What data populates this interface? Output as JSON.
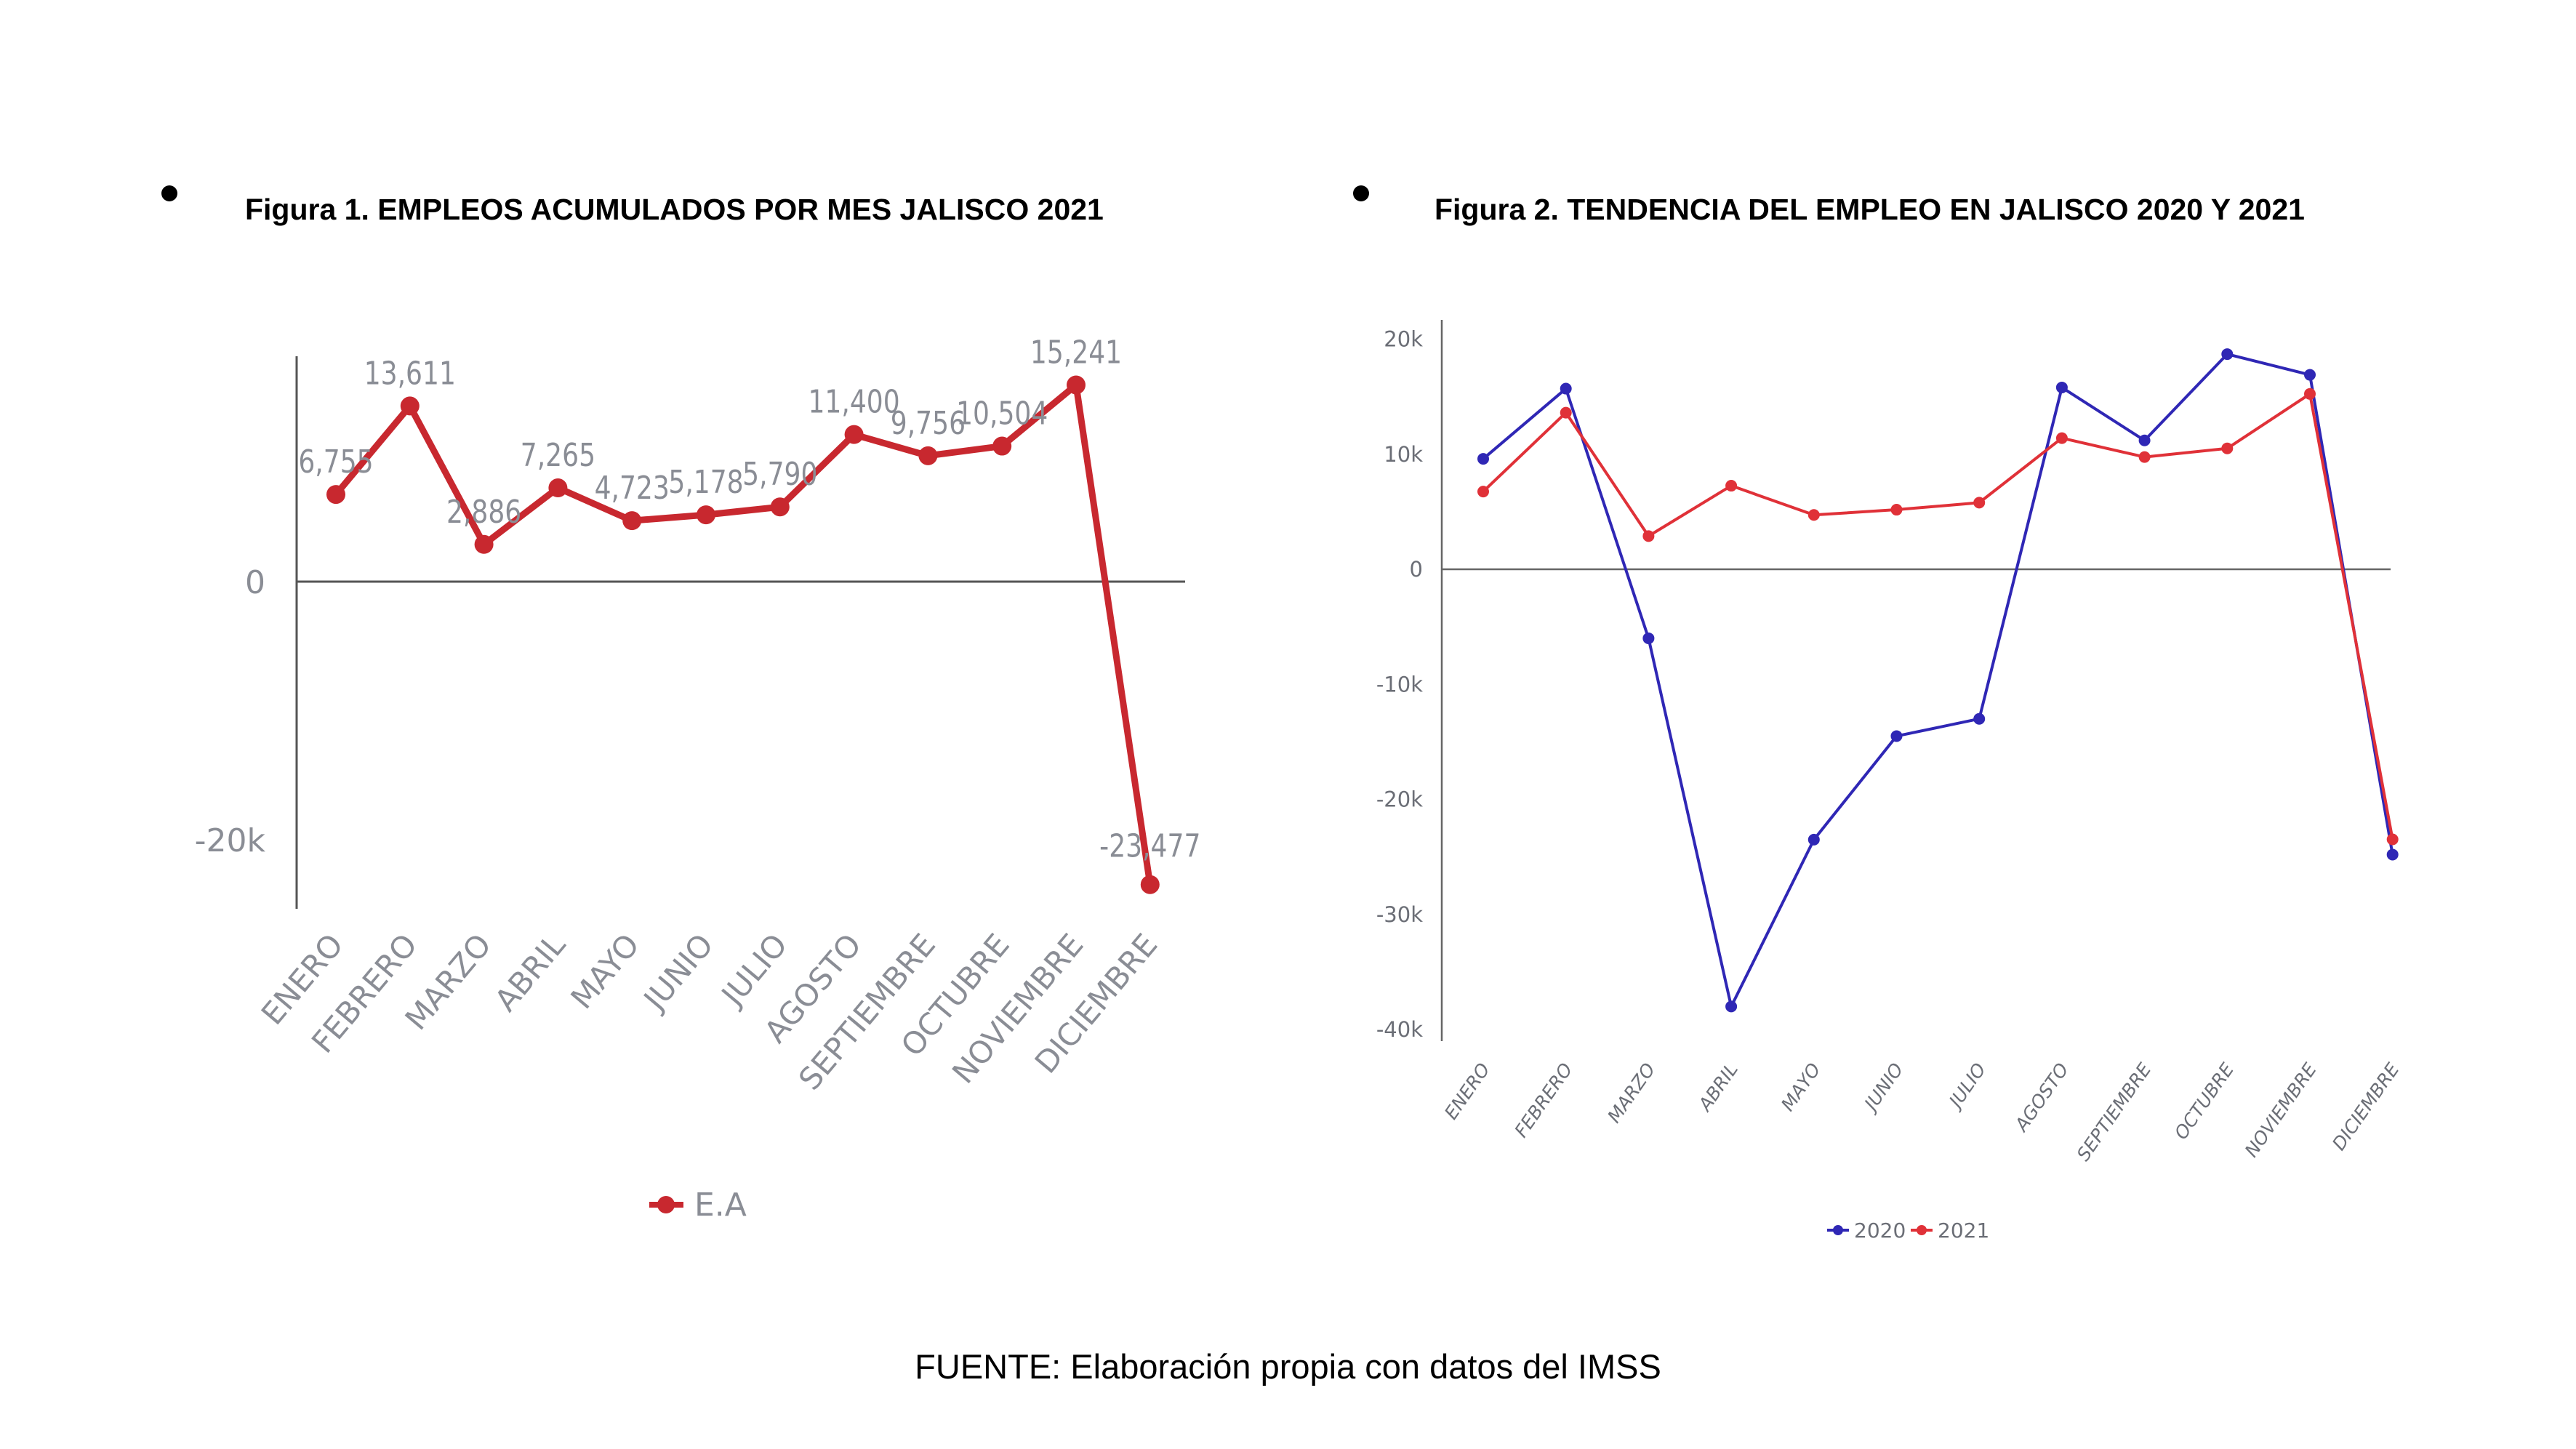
{
  "figure1": {
    "title": "Figura 1. EMPLEOS ACUMULADOS POR MES JALISCO 2021",
    "chart_data": {
      "type": "line",
      "title": "Figura 1. EMPLEOS ACUMULADOS POR MES JALISCO 2021",
      "categories": [
        "ENERO",
        "FEBRERO",
        "MARZO",
        "ABRIL",
        "MAYO",
        "JUNIO",
        "JULIO",
        "AGOSTO",
        "SEPTIEMBRE",
        "OCTUBRE",
        "NOVIEMBRE",
        "DICIEMBRE"
      ],
      "series": [
        {
          "name": "E.A",
          "color": "#c8282f",
          "values": [
            6755,
            13611,
            2886,
            7265,
            4723,
            5178,
            5790,
            11400,
            9756,
            10504,
            15241,
            -23477
          ],
          "labels": [
            "6,755",
            "13,611",
            "2,886",
            "7,265",
            "4,723",
            "5,178",
            "5,790",
            "11,400",
            "9,756",
            "10,504",
            "15,241",
            "-23,477"
          ]
        }
      ],
      "yticks": [
        0,
        -20000
      ],
      "ytick_labels": [
        "0",
        "-20k"
      ],
      "ylim": [
        -25000,
        17000
      ],
      "legend": "bottom-center"
    }
  },
  "figure2": {
    "title": "Figura 2. TENDENCIA DEL EMPLEO EN JALISCO 2020 Y 2021",
    "chart_data": {
      "type": "line",
      "title": "Figura 2. TENDENCIA DEL EMPLEO EN JALISCO 2020 Y 2021",
      "categories": [
        "ENERO",
        "FEBRERO",
        "MARZO",
        "ABRIL",
        "MAYO",
        "JUNIO",
        "JULIO",
        "AGOSTO",
        "SEPTIEMBRE",
        "OCTUBRE",
        "NOVIEMBRE",
        "DICIEMBRE"
      ],
      "series": [
        {
          "name": "2020",
          "color": "#2f27b5",
          "values": [
            9600,
            15700,
            -6000,
            -38000,
            -23500,
            -14500,
            -13000,
            15800,
            11200,
            18700,
            16900,
            -24800
          ]
        },
        {
          "name": "2021",
          "color": "#e03138",
          "values": [
            6755,
            13611,
            2886,
            7265,
            4723,
            5178,
            5790,
            11400,
            9756,
            10504,
            15241,
            -23477
          ]
        }
      ],
      "yticks": [
        20000,
        10000,
        0,
        -10000,
        -20000,
        -30000,
        -40000
      ],
      "ytick_labels": [
        "20k",
        "10k",
        "0",
        "-10k",
        "-20k",
        "-30k",
        "-40k"
      ],
      "ylim": [
        -40000,
        20000
      ],
      "legend": "bottom-center"
    }
  },
  "source": "FUENTE: Elaboración propia con datos del IMSS"
}
